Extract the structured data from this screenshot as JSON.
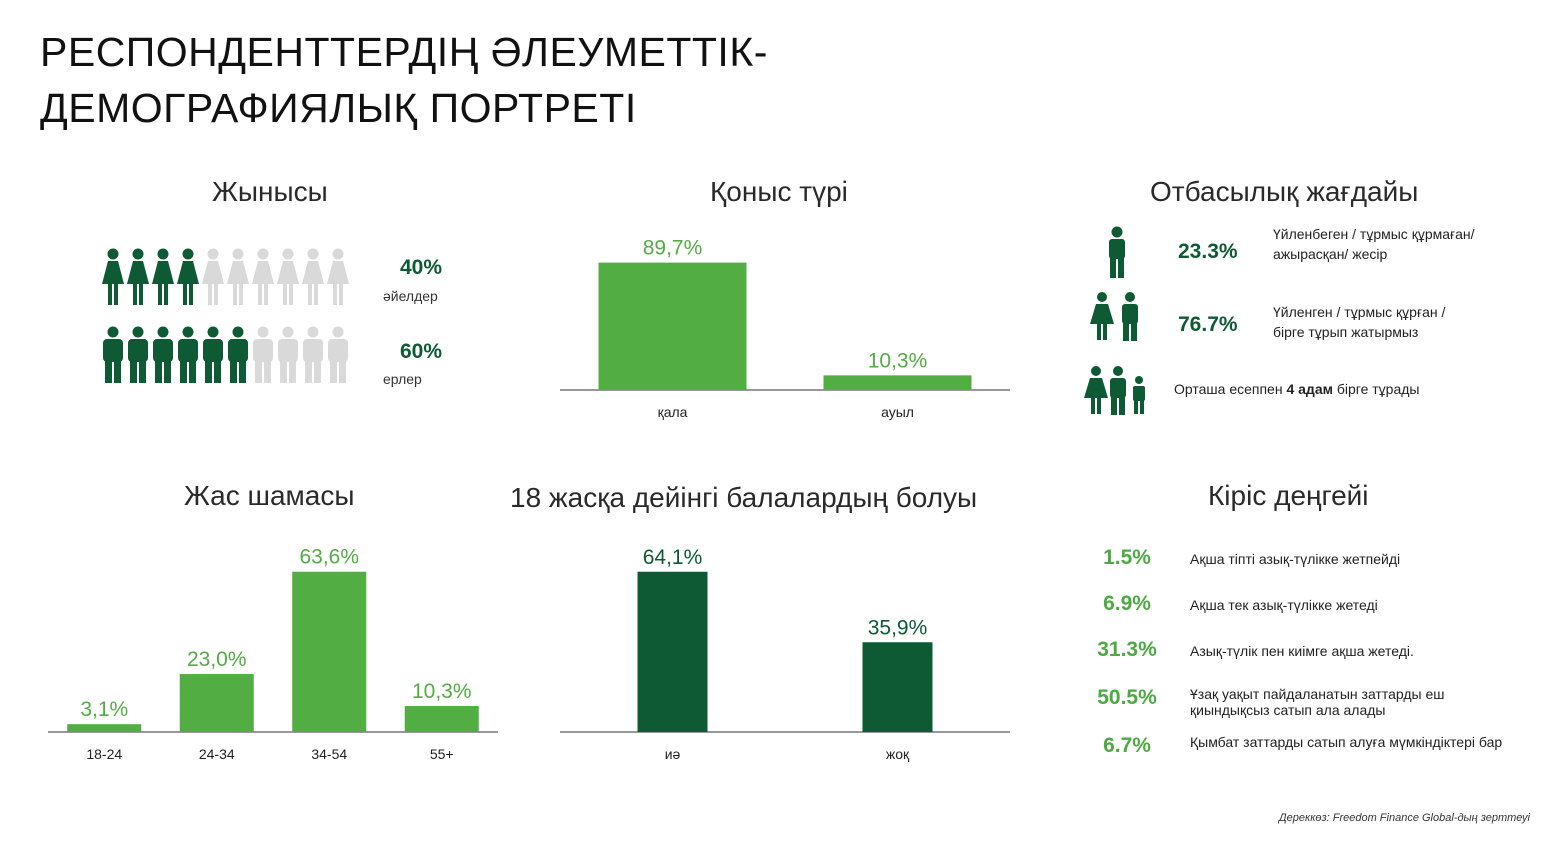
{
  "page": {
    "title_line1": "РЕСПОНДЕНТТЕРДІҢ ӘЛЕУМЕТТІК-",
    "title_line2": "ДЕМОГРАФИЯЛЫҚ ПОРТРЕТІ",
    "source": "Дереккөз: Freedom Finance Global-дың зерттеуі"
  },
  "colors": {
    "dark_green": "#0d5a34",
    "light_green": "#52ad43",
    "grey_icon": "#d9d9d9"
  },
  "gender": {
    "title": "Жынысы",
    "women": {
      "pct": "40%",
      "label": "әйелдер",
      "filled": 4,
      "total": 10
    },
    "men": {
      "pct": "60%",
      "label": "ерлер",
      "filled": 6,
      "total": 10
    }
  },
  "family": {
    "title": "Отбасылық жағдайы",
    "single": {
      "pct": "23.3%",
      "text_line1": "Үйленбеген / тұрмыс құрмаған/",
      "text_line2": "ажырасқан/ жесір"
    },
    "married": {
      "pct": "76.7%",
      "text_line1": "Үйленген / тұрмыс құрған /",
      "text_line2": "бірге тұрып жатырмыз"
    },
    "household": {
      "text_before": "Орташа есеппен ",
      "text_bold": "4 адам",
      "text_after": " бірге тұрады"
    }
  },
  "income": {
    "title": "Кіріс деңгейі",
    "items": [
      {
        "pct": "1.5%",
        "text": "Ақша тіпті азық-түлікке жетпейді"
      },
      {
        "pct": "6.9%",
        "text": "Ақша тек азық-түлікке жетеді"
      },
      {
        "pct": "31.3%",
        "text": "Азық-түлік пен киімге ақша жетеді."
      },
      {
        "pct": "50.5%",
        "text": "Ұзақ уақыт пайдаланатын заттарды еш қиындықсыз сатып ала алады"
      },
      {
        "pct": "6.7%",
        "text": "Қымбат заттарды сатып алуға мүмкіндіктері бар"
      }
    ]
  },
  "chart_data": [
    {
      "id": "settlement",
      "type": "bar",
      "title": "Қоныс түрі",
      "categories": [
        "қала",
        "ауыл"
      ],
      "values": [
        89.7,
        10.3
      ],
      "labels": [
        "89,7%",
        "10,3%"
      ],
      "ylim": [
        0,
        100
      ],
      "color": "#52ad43"
    },
    {
      "id": "age",
      "type": "bar",
      "title": "Жас шамасы",
      "categories": [
        "18-24",
        "24-34",
        "34-54",
        "55+"
      ],
      "values": [
        3.1,
        23.0,
        63.6,
        10.3
      ],
      "labels": [
        "3,1%",
        "23,0%",
        "63,6%",
        "10,3%"
      ],
      "ylim": [
        0,
        100
      ],
      "color": "#52ad43"
    },
    {
      "id": "children",
      "type": "bar",
      "title": "18 жасқа дейінгі балалардың болуы",
      "categories": [
        "иә",
        "жоқ"
      ],
      "values": [
        64.1,
        35.9
      ],
      "labels": [
        "64,1%",
        "35,9%"
      ],
      "ylim": [
        0,
        100
      ],
      "color": "#0d5a34"
    }
  ]
}
